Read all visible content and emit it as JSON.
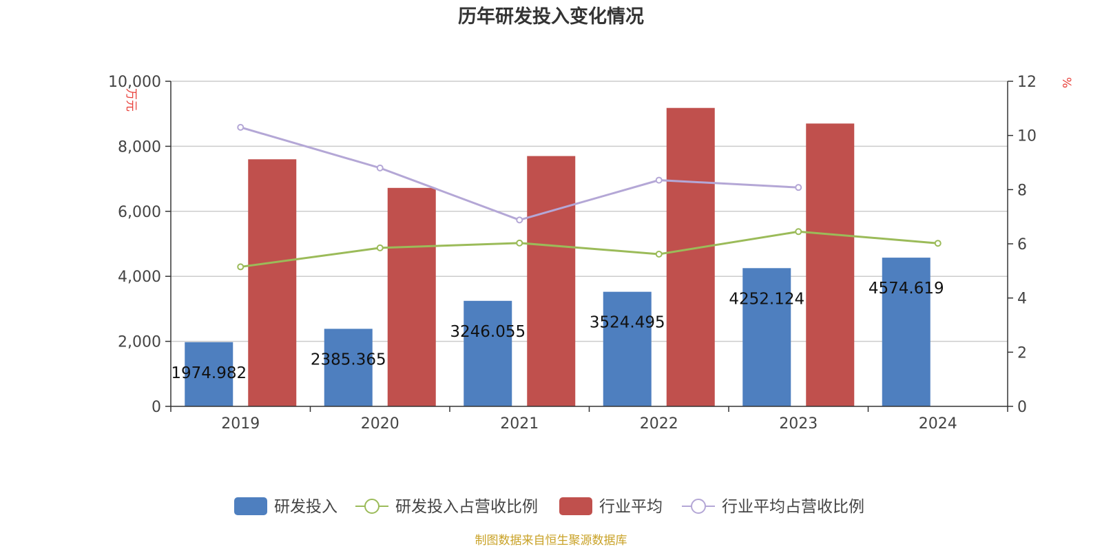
{
  "chart_data": {
    "type": "bar",
    "title": "历年研发投入变化情况",
    "categories": [
      "2019",
      "2020",
      "2021",
      "2022",
      "2023",
      "2024"
    ],
    "y_left": {
      "unit": "万元",
      "min": 0,
      "max": 10000,
      "ticks": [
        "0",
        "2,000",
        "4,000",
        "6,000",
        "8,000",
        "10,000"
      ]
    },
    "y_right": {
      "unit": "%",
      "min": 0,
      "max": 12,
      "ticks": [
        "0",
        "2",
        "4",
        "6",
        "8",
        "10",
        "12"
      ]
    },
    "grid": true,
    "legend_position": "bottom",
    "series": [
      {
        "name": "研发投入",
        "kind": "bar",
        "axis": "left",
        "color": "#4e7fbf",
        "values": [
          1974.982,
          2385.365,
          3246.055,
          3524.495,
          4252.124,
          4574.619
        ],
        "labels": [
          "1974.982",
          "2385.365",
          "3246.055",
          "3524.495",
          "4252.124",
          "4574.619"
        ]
      },
      {
        "name": "研发投入占营收比例",
        "kind": "line",
        "axis": "right",
        "color": "#9bbb59",
        "values": [
          5.15,
          5.85,
          6.03,
          5.62,
          6.45,
          6.02
        ]
      },
      {
        "name": "行业平均",
        "kind": "bar",
        "axis": "left",
        "color": "#c0504d",
        "values": [
          7600,
          6720,
          7700,
          9180,
          8700,
          null
        ]
      },
      {
        "name": "行业平均占营收比例",
        "kind": "line",
        "axis": "right",
        "color": "#b4a7d6",
        "values": [
          10.3,
          8.8,
          6.88,
          8.35,
          8.08,
          null
        ]
      }
    ]
  },
  "footer": {
    "source": "制图数据来自恒生聚源数据库"
  }
}
